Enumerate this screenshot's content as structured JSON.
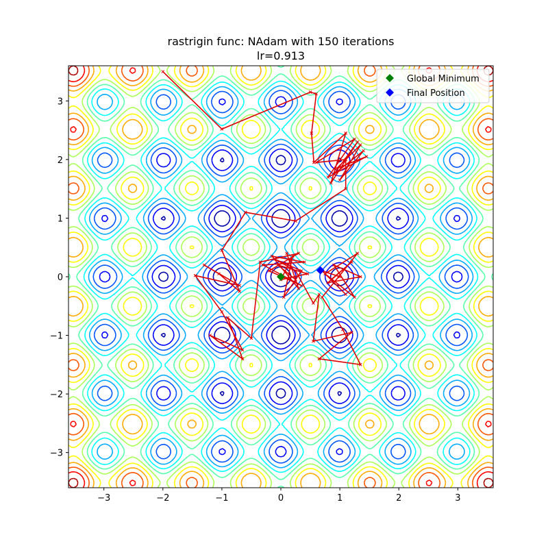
{
  "chart_data": {
    "type": "contour",
    "title_line1": "rastrigin func: NAdam with 150 iterations",
    "title_line2": "lr=0.913",
    "xlabel": "",
    "ylabel": "",
    "xlim": [
      -3.6,
      3.6
    ],
    "ylim": [
      -3.6,
      3.6
    ],
    "x_ticks": [
      -3,
      -2,
      -1,
      0,
      1,
      2,
      3
    ],
    "y_ticks": [
      -3,
      -2,
      -1,
      0,
      1,
      2,
      3
    ],
    "x_tick_labels": [
      "−3",
      "−2",
      "−1",
      "0",
      "1",
      "2",
      "3"
    ],
    "y_tick_labels": [
      "−3",
      "−2",
      "−1",
      "0",
      "1",
      "2",
      "3"
    ],
    "grid": false,
    "contour_colormap": "jet",
    "legend_placement": "upper-right",
    "legend": [
      {
        "label": "Global Minimum",
        "marker": "diamond",
        "color": "#008000"
      },
      {
        "label": "Final Position",
        "marker": "diamond",
        "color": "#0000ff"
      }
    ],
    "global_minimum": {
      "x": 0.0,
      "y": 0.0,
      "color": "#008000"
    },
    "final_position": {
      "x": 0.67,
      "y": 0.11,
      "color": "#0000ff"
    },
    "path_color": "#dd0000",
    "path": [
      [
        -2.0,
        3.5
      ],
      [
        -1.0,
        2.52
      ],
      [
        0.5,
        3.15
      ],
      [
        0.6,
        3.12
      ],
      [
        0.52,
        2.45
      ],
      [
        0.56,
        1.95
      ],
      [
        1.1,
        2.45
      ],
      [
        0.85,
        1.6
      ],
      [
        1.3,
        2.3
      ],
      [
        0.9,
        1.75
      ],
      [
        1.4,
        2.15
      ],
      [
        1.0,
        1.65
      ],
      [
        1.35,
        2.25
      ],
      [
        0.95,
        1.85
      ],
      [
        1.45,
        2.05
      ],
      [
        0.8,
        1.7
      ],
      [
        1.25,
        2.35
      ],
      [
        0.6,
        1.95
      ],
      [
        1.1,
        2.0
      ],
      [
        1.1,
        1.5
      ],
      [
        0.25,
        0.95
      ],
      [
        -0.6,
        1.1
      ],
      [
        -1.0,
        0.45
      ],
      [
        -0.7,
        -0.25
      ],
      [
        -1.05,
        0.05
      ],
      [
        -1.3,
        0.2
      ],
      [
        -0.7,
        -0.15
      ],
      [
        -1.45,
        0.02
      ],
      [
        -1.0,
        -0.6
      ],
      [
        -0.65,
        -1.25
      ],
      [
        -1.2,
        -1.0
      ],
      [
        -0.65,
        -1.4
      ],
      [
        -0.9,
        -0.7
      ],
      [
        -0.5,
        -1.05
      ],
      [
        -0.35,
        0.25
      ],
      [
        0.3,
        0.4
      ],
      [
        -0.2,
        0.1
      ],
      [
        0.35,
        -0.15
      ],
      [
        -0.3,
        0.2
      ],
      [
        0.4,
        0.25
      ],
      [
        -0.15,
        0.35
      ],
      [
        0.3,
        -0.2
      ],
      [
        0.1,
        0.4
      ],
      [
        0.25,
        -0.05
      ],
      [
        -0.05,
        0.2
      ],
      [
        0.45,
        0.05
      ],
      [
        0.0,
        -0.05
      ],
      [
        0.2,
        0.35
      ],
      [
        0.05,
        -0.35
      ],
      [
        0.35,
        0.1
      ],
      [
        -0.1,
        0.3
      ],
      [
        0.25,
        0.1
      ],
      [
        0.55,
        -0.45
      ],
      [
        0.65,
        -0.3
      ],
      [
        0.55,
        -1.1
      ],
      [
        1.2,
        -0.95
      ],
      [
        0.65,
        -1.4
      ],
      [
        1.35,
        -1.5
      ],
      [
        1.05,
        -0.9
      ],
      [
        0.7,
        -0.35
      ],
      [
        1.3,
        0.4
      ],
      [
        0.75,
        0.05
      ],
      [
        1.25,
        -0.35
      ],
      [
        0.9,
        0.2
      ],
      [
        1.35,
        0.0
      ],
      [
        0.8,
        -0.1
      ],
      [
        1.2,
        0.25
      ],
      [
        0.85,
        -0.05
      ],
      [
        1.1,
        -0.3
      ],
      [
        0.7,
        0.1
      ],
      [
        1.0,
        0.0
      ],
      [
        0.67,
        0.11
      ]
    ]
  }
}
